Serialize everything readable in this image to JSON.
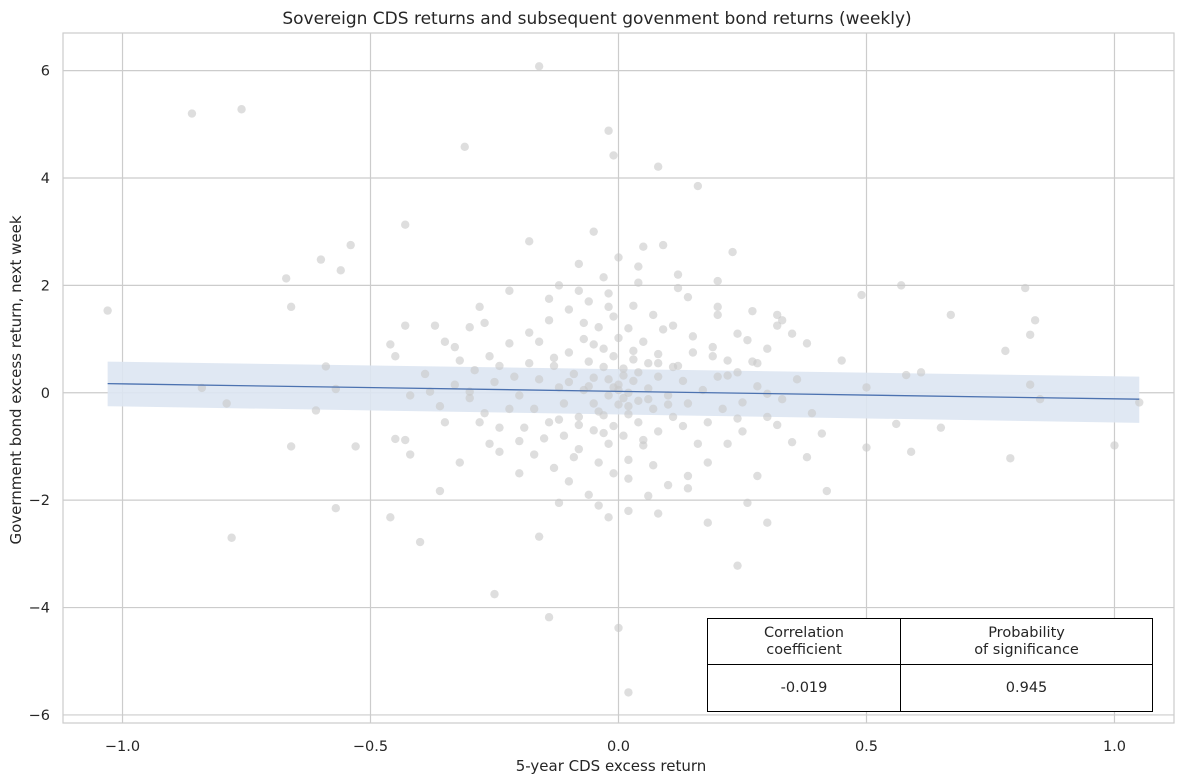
{
  "chart_data": {
    "type": "scatter",
    "title": "Sovereign CDS returns and subsequent govenment bond returns (weekly)",
    "xlabel": "5-year CDS excess return",
    "ylabel": "Government bond excess return, next week",
    "xlim": [
      -1.12,
      1.12
    ],
    "ylim": [
      -6.15,
      6.7
    ],
    "xticks": [
      -1.0,
      -0.5,
      0.0,
      0.5,
      1.0
    ],
    "xtick_labels": [
      "−1.0",
      "−0.5",
      "0.0",
      "0.5",
      "1.0"
    ],
    "yticks": [
      -6,
      -4,
      -2,
      0,
      2,
      4,
      6
    ],
    "ytick_labels": [
      "−6",
      "−4",
      "−2",
      "0",
      "2",
      "4",
      "6"
    ],
    "grid": true,
    "point_color": "#c8c8c8",
    "line_color": "#4c72b0",
    "band_color": "#dde5f2",
    "regression": {
      "x": [
        -1.03,
        1.05
      ],
      "y": [
        0.17,
        -0.12
      ],
      "ci_upper": [
        0.58,
        0.3
      ],
      "ci_lower": [
        -0.25,
        -0.56
      ]
    },
    "points": [
      [
        -1.03,
        1.53
      ],
      [
        -0.86,
        5.2
      ],
      [
        -0.76,
        5.28
      ],
      [
        -0.31,
        4.58
      ],
      [
        -0.16,
        6.08
      ],
      [
        -0.02,
        4.88
      ],
      [
        -0.01,
        4.42
      ],
      [
        0.08,
        4.21
      ],
      [
        0.16,
        3.85
      ],
      [
        -0.43,
        3.13
      ],
      [
        -0.18,
        2.82
      ],
      [
        0.0,
        2.52
      ],
      [
        -0.54,
        2.75
      ],
      [
        -0.67,
        2.13
      ],
      [
        -0.6,
        2.48
      ],
      [
        -0.66,
        1.6
      ],
      [
        -0.56,
        2.28
      ],
      [
        -0.05,
        3.0
      ],
      [
        0.05,
        2.72
      ],
      [
        0.09,
        2.75
      ],
      [
        0.23,
        2.62
      ],
      [
        0.2,
        2.08
      ],
      [
        0.57,
        2.0
      ],
      [
        0.82,
        1.95
      ],
      [
        0.67,
        1.45
      ],
      [
        0.49,
        1.82
      ],
      [
        0.84,
        1.35
      ],
      [
        0.83,
        1.08
      ],
      [
        0.78,
        0.78
      ],
      [
        0.38,
        0.92
      ],
      [
        0.32,
        1.45
      ],
      [
        0.45,
        0.6
      ],
      [
        0.61,
        0.38
      ],
      [
        0.58,
        0.33
      ],
      [
        0.83,
        0.15
      ],
      [
        0.5,
        0.1
      ],
      [
        0.85,
        -0.12
      ],
      [
        0.65,
        -0.65
      ],
      [
        0.56,
        -0.58
      ],
      [
        0.59,
        -1.1
      ],
      [
        0.5,
        -1.02
      ],
      [
        0.41,
        -0.76
      ],
      [
        0.42,
        -1.83
      ],
      [
        0.38,
        -1.2
      ],
      [
        0.79,
        -1.22
      ],
      [
        1.0,
        -0.98
      ],
      [
        1.05,
        -0.18
      ],
      [
        0.3,
        -2.42
      ],
      [
        0.24,
        -3.22
      ],
      [
        0.18,
        -2.42
      ],
      [
        0.26,
        -2.05
      ],
      [
        0.02,
        -5.58
      ],
      [
        0.0,
        -4.38
      ],
      [
        -0.14,
        -4.18
      ],
      [
        -0.25,
        -3.75
      ],
      [
        -0.16,
        -2.68
      ],
      [
        -0.4,
        -2.78
      ],
      [
        -0.78,
        -2.7
      ],
      [
        -0.57,
        -2.15
      ],
      [
        -0.46,
        -2.32
      ],
      [
        -0.36,
        -1.83
      ],
      [
        -0.42,
        -1.15
      ],
      [
        -0.43,
        -0.88
      ],
      [
        -0.45,
        -0.86
      ],
      [
        -0.53,
        -1.0
      ],
      [
        -0.66,
        -1.0
      ],
      [
        -0.61,
        -0.33
      ],
      [
        -0.57,
        0.07
      ],
      [
        -0.59,
        0.49
      ],
      [
        -0.79,
        -0.2
      ],
      [
        -0.84,
        0.09
      ],
      [
        -0.43,
        1.25
      ],
      [
        -0.37,
        1.25
      ],
      [
        -0.46,
        0.9
      ],
      [
        -0.45,
        0.68
      ],
      [
        -0.42,
        -0.05
      ],
      [
        -0.38,
        0.02
      ],
      [
        -0.35,
        -0.55
      ],
      [
        -0.33,
        0.85
      ],
      [
        -0.3,
        1.22
      ],
      [
        -0.27,
        1.3
      ],
      [
        -0.22,
        1.9
      ],
      [
        -0.12,
        2.0
      ],
      [
        -0.08,
        1.9
      ],
      [
        -0.03,
        2.15
      ],
      [
        0.04,
        2.05
      ],
      [
        0.12,
        1.95
      ],
      [
        0.14,
        1.78
      ],
      [
        0.2,
        1.6
      ],
      [
        0.27,
        1.52
      ],
      [
        0.33,
        1.35
      ],
      [
        0.35,
        1.1
      ],
      [
        0.3,
        0.82
      ],
      [
        0.27,
        0.58
      ],
      [
        0.24,
        0.38
      ],
      [
        0.28,
        0.12
      ],
      [
        0.33,
        -0.12
      ],
      [
        0.3,
        -0.45
      ],
      [
        0.25,
        -0.72
      ],
      [
        0.22,
        -0.95
      ],
      [
        0.18,
        -1.3
      ],
      [
        0.14,
        -1.55
      ],
      [
        0.1,
        -1.72
      ],
      [
        0.06,
        -1.92
      ],
      [
        0.02,
        -2.2
      ],
      [
        -0.02,
        -2.32
      ],
      [
        -0.06,
        -1.9
      ],
      [
        -0.1,
        -1.65
      ],
      [
        -0.13,
        -1.4
      ],
      [
        -0.17,
        -1.15
      ],
      [
        -0.2,
        -0.9
      ],
      [
        -0.24,
        -0.65
      ],
      [
        -0.27,
        -0.38
      ],
      [
        -0.3,
        -0.1
      ],
      [
        -0.33,
        0.15
      ],
      [
        -0.29,
        0.42
      ],
      [
        -0.26,
        0.68
      ],
      [
        -0.22,
        0.92
      ],
      [
        -0.18,
        1.12
      ],
      [
        -0.14,
        1.35
      ],
      [
        -0.1,
        1.55
      ],
      [
        -0.06,
        1.7
      ],
      [
        -0.02,
        1.85
      ],
      [
        0.03,
        1.62
      ],
      [
        0.07,
        1.45
      ],
      [
        0.11,
        1.25
      ],
      [
        0.15,
        1.05
      ],
      [
        0.19,
        0.85
      ],
      [
        0.22,
        0.6
      ],
      [
        0.2,
        0.3
      ],
      [
        0.17,
        0.05
      ],
      [
        0.14,
        -0.2
      ],
      [
        0.11,
        -0.45
      ],
      [
        0.08,
        -0.72
      ],
      [
        0.05,
        -0.98
      ],
      [
        0.02,
        -1.25
      ],
      [
        -0.01,
        -1.5
      ],
      [
        -0.04,
        -1.3
      ],
      [
        -0.08,
        -1.05
      ],
      [
        -0.11,
        -0.8
      ],
      [
        -0.14,
        -0.55
      ],
      [
        -0.17,
        -0.3
      ],
      [
        -0.2,
        -0.05
      ],
      [
        -0.16,
        0.25
      ],
      [
        -0.13,
        0.5
      ],
      [
        -0.1,
        0.75
      ],
      [
        -0.07,
        1.0
      ],
      [
        -0.04,
        1.22
      ],
      [
        -0.01,
        1.42
      ],
      [
        0.02,
        1.2
      ],
      [
        0.05,
        0.95
      ],
      [
        0.08,
        0.72
      ],
      [
        0.11,
        0.48
      ],
      [
        0.13,
        0.22
      ],
      [
        0.1,
        -0.05
      ],
      [
        0.07,
        -0.3
      ],
      [
        0.04,
        -0.55
      ],
      [
        0.01,
        -0.8
      ],
      [
        -0.02,
        -0.95
      ],
      [
        -0.05,
        -0.7
      ],
      [
        -0.08,
        -0.45
      ],
      [
        -0.11,
        -0.2
      ],
      [
        -0.12,
        0.1
      ],
      [
        -0.09,
        0.35
      ],
      [
        -0.06,
        0.58
      ],
      [
        -0.03,
        0.82
      ],
      [
        0.0,
        1.02
      ],
      [
        0.03,
        0.78
      ],
      [
        0.06,
        0.55
      ],
      [
        0.08,
        0.3
      ],
      [
        0.06,
        0.08
      ],
      [
        0.04,
        -0.15
      ],
      [
        0.02,
        -0.4
      ],
      [
        -0.01,
        -0.62
      ],
      [
        -0.03,
        -0.42
      ],
      [
        -0.05,
        -0.2
      ],
      [
        -0.07,
        0.05
      ],
      [
        -0.05,
        0.28
      ],
      [
        -0.03,
        0.48
      ],
      [
        -0.01,
        0.68
      ],
      [
        0.01,
        0.45
      ],
      [
        0.03,
        0.22
      ],
      [
        0.02,
        0.0
      ],
      [
        0.0,
        -0.22
      ],
      [
        -0.02,
        -0.05
      ],
      [
        0.0,
        0.15
      ],
      [
        0.01,
        0.32
      ],
      [
        -0.01,
        0.1
      ],
      [
        0.01,
        -0.1
      ],
      [
        0.0,
        0.05
      ],
      [
        -0.02,
        0.25
      ],
      [
        0.02,
        -0.25
      ],
      [
        -0.04,
        -0.35
      ],
      [
        0.04,
        0.38
      ],
      [
        -0.06,
        0.12
      ],
      [
        0.06,
        -0.12
      ],
      [
        -0.03,
        -0.75
      ],
      [
        0.03,
        0.62
      ],
      [
        -0.08,
        -0.6
      ],
      [
        0.08,
        0.55
      ],
      [
        -0.1,
        0.2
      ],
      [
        0.1,
        -0.22
      ],
      [
        -0.15,
        -0.85
      ],
      [
        0.15,
        0.75
      ],
      [
        -0.18,
        0.55
      ],
      [
        0.18,
        -0.55
      ],
      [
        -0.21,
        0.3
      ],
      [
        0.21,
        -0.3
      ],
      [
        -0.25,
        0.2
      ],
      [
        0.25,
        -0.18
      ],
      [
        -0.28,
        -0.55
      ],
      [
        0.28,
        0.55
      ],
      [
        -0.32,
        0.6
      ],
      [
        0.32,
        -0.6
      ],
      [
        -0.36,
        -0.25
      ],
      [
        0.36,
        0.25
      ],
      [
        -0.39,
        0.35
      ],
      [
        0.39,
        -0.38
      ],
      [
        -0.2,
        -1.5
      ],
      [
        0.2,
        1.45
      ],
      [
        -0.24,
        -1.1
      ],
      [
        0.24,
        1.1
      ],
      [
        -0.12,
        -2.05
      ],
      [
        0.12,
        2.2
      ],
      [
        -0.08,
        2.4
      ],
      [
        0.08,
        -2.25
      ],
      [
        -0.28,
        1.6
      ],
      [
        0.28,
        -1.55
      ],
      [
        -0.32,
        -1.3
      ],
      [
        0.32,
        1.25
      ],
      [
        -0.04,
        -2.1
      ],
      [
        0.04,
        2.35
      ],
      [
        -0.14,
        1.75
      ],
      [
        0.14,
        -1.78
      ],
      [
        -0.07,
        1.3
      ],
      [
        0.07,
        -1.35
      ],
      [
        -0.09,
        -1.2
      ],
      [
        0.09,
        1.18
      ],
      [
        -0.05,
        0.9
      ],
      [
        0.05,
        -0.88
      ],
      [
        -0.02,
        1.6
      ],
      [
        0.02,
        -1.6
      ],
      [
        -0.35,
        0.95
      ],
      [
        0.35,
        -0.92
      ],
      [
        -0.22,
        -0.3
      ],
      [
        0.22,
        0.32
      ],
      [
        -0.16,
        0.95
      ],
      [
        0.16,
        -0.95
      ],
      [
        -0.26,
        -0.95
      ],
      [
        0.26,
        0.98
      ],
      [
        -0.3,
        0.02
      ],
      [
        0.3,
        -0.02
      ],
      [
        -0.12,
        -0.5
      ],
      [
        0.12,
        0.5
      ],
      [
        -0.19,
        -0.65
      ],
      [
        0.19,
        0.68
      ],
      [
        -0.13,
        0.65
      ],
      [
        0.13,
        -0.62
      ],
      [
        -0.24,
        0.5
      ],
      [
        0.24,
        -0.48
      ]
    ]
  },
  "table": {
    "headers": [
      "Correlation\ncoefficient",
      "Probability\nof significance"
    ],
    "values": [
      "-0.019",
      "0.945"
    ]
  }
}
